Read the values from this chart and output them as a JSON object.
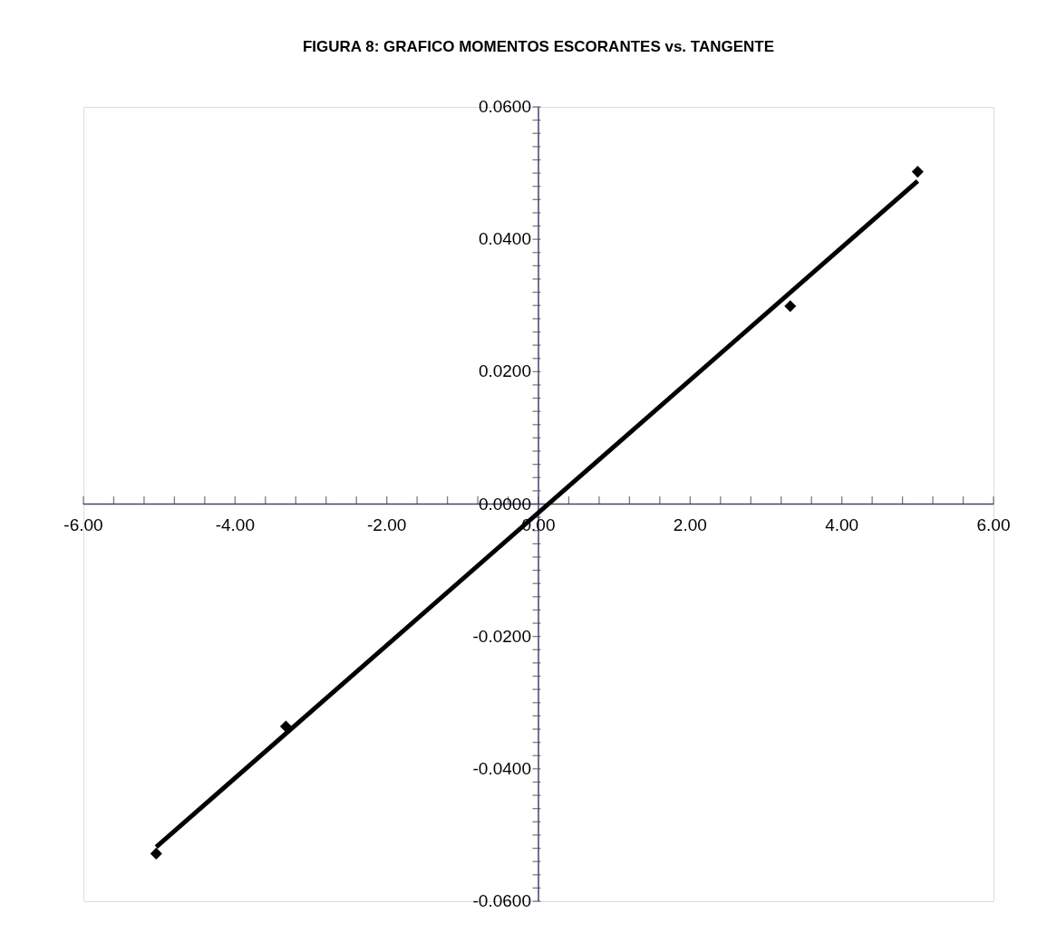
{
  "chart_data": {
    "type": "scatter",
    "title": "FIGURA 8: GRAFICO MOMENTOS ESCORANTES vs. TANGENTE",
    "series": [
      {
        "color": "#000000",
        "marker": "diamond",
        "x": [
          -5.04,
          -3.33,
          3.32,
          5.0
        ],
        "values": [
          -0.0528,
          -0.0336,
          0.0299,
          0.0502
        ]
      },
      {
        "type": "line",
        "color": "#000000",
        "line_style": "solid",
        "marker": "none",
        "x": [
          -5.04,
          5.0
        ],
        "values": [
          -0.0518,
          0.0488
        ]
      }
    ],
    "xlim": [
      -6,
      6
    ],
    "ylim": [
      -0.06,
      0.06
    ],
    "grid": false,
    "xticks": [
      {
        "value": -6,
        "label": "-6.00"
      },
      {
        "value": -5.6,
        "label": null
      },
      {
        "value": -5.2,
        "label": null
      },
      {
        "value": -4.8,
        "label": null
      },
      {
        "value": -4.4,
        "label": null
      },
      {
        "value": -4,
        "label": "-4.00"
      },
      {
        "value": -3.6,
        "label": null
      },
      {
        "value": -3.2,
        "label": null
      },
      {
        "value": -2.8,
        "label": null
      },
      {
        "value": -2.4,
        "label": null
      },
      {
        "value": -2,
        "label": "-2.00"
      },
      {
        "value": -1.6,
        "label": null
      },
      {
        "value": -1.2,
        "label": null
      },
      {
        "value": -0.8,
        "label": null
      },
      {
        "value": -0.4,
        "label": null
      },
      {
        "value": 0,
        "label": "0.00"
      },
      {
        "value": 0.4,
        "label": null
      },
      {
        "value": 0.8,
        "label": null
      },
      {
        "value": 1.2,
        "label": null
      },
      {
        "value": 1.6,
        "label": null
      },
      {
        "value": 2,
        "label": "2.00"
      },
      {
        "value": 2.4,
        "label": null
      },
      {
        "value": 2.8,
        "label": null
      },
      {
        "value": 3.2,
        "label": null
      },
      {
        "value": 3.6,
        "label": null
      },
      {
        "value": 4,
        "label": "4.00"
      },
      {
        "value": 4.4,
        "label": null
      },
      {
        "value": 4.8,
        "label": null
      },
      {
        "value": 5.2,
        "label": null
      },
      {
        "value": 5.6,
        "label": null
      },
      {
        "value": 6,
        "label": "6.00"
      }
    ],
    "yticks": [
      {
        "value": -0.06,
        "label": "-0.0600"
      },
      {
        "value": -0.058,
        "label": null
      },
      {
        "value": -0.056,
        "label": null
      },
      {
        "value": -0.054,
        "label": null
      },
      {
        "value": -0.052,
        "label": null
      },
      {
        "value": -0.05,
        "label": null
      },
      {
        "value": -0.048,
        "label": null
      },
      {
        "value": -0.046,
        "label": null
      },
      {
        "value": -0.044,
        "label": null
      },
      {
        "value": -0.042,
        "label": null
      },
      {
        "value": -0.04,
        "label": "-0.0400"
      },
      {
        "value": -0.038,
        "label": null
      },
      {
        "value": -0.036,
        "label": null
      },
      {
        "value": -0.034,
        "label": null
      },
      {
        "value": -0.032,
        "label": null
      },
      {
        "value": -0.03,
        "label": null
      },
      {
        "value": -0.028,
        "label": null
      },
      {
        "value": -0.026,
        "label": null
      },
      {
        "value": -0.024,
        "label": null
      },
      {
        "value": -0.022,
        "label": null
      },
      {
        "value": -0.02,
        "label": "-0.0200"
      },
      {
        "value": -0.018,
        "label": null
      },
      {
        "value": -0.016,
        "label": null
      },
      {
        "value": -0.014,
        "label": null
      },
      {
        "value": -0.012,
        "label": null
      },
      {
        "value": -0.01,
        "label": null
      },
      {
        "value": -0.008,
        "label": null
      },
      {
        "value": -0.006,
        "label": null
      },
      {
        "value": -0.004,
        "label": null
      },
      {
        "value": -0.002,
        "label": null
      },
      {
        "value": 0,
        "label": "0.0000"
      },
      {
        "value": 0.002,
        "label": null
      },
      {
        "value": 0.004,
        "label": null
      },
      {
        "value": 0.006,
        "label": null
      },
      {
        "value": 0.008,
        "label": null
      },
      {
        "value": 0.01,
        "label": null
      },
      {
        "value": 0.012,
        "label": null
      },
      {
        "value": 0.014,
        "label": null
      },
      {
        "value": 0.016,
        "label": null
      },
      {
        "value": 0.018,
        "label": null
      },
      {
        "value": 0.02,
        "label": "0.0200"
      },
      {
        "value": 0.022,
        "label": null
      },
      {
        "value": 0.024,
        "label": null
      },
      {
        "value": 0.026,
        "label": null
      },
      {
        "value": 0.028,
        "label": null
      },
      {
        "value": 0.03,
        "label": null
      },
      {
        "value": 0.032,
        "label": null
      },
      {
        "value": 0.034,
        "label": null
      },
      {
        "value": 0.036,
        "label": null
      },
      {
        "value": 0.038,
        "label": null
      },
      {
        "value": 0.04,
        "label": "0.0400"
      },
      {
        "value": 0.042,
        "label": null
      },
      {
        "value": 0.044,
        "label": null
      },
      {
        "value": 0.046,
        "label": null
      },
      {
        "value": 0.048,
        "label": null
      },
      {
        "value": 0.05,
        "label": null
      },
      {
        "value": 0.052,
        "label": null
      },
      {
        "value": 0.054,
        "label": null
      },
      {
        "value": 0.056,
        "label": null
      },
      {
        "value": 0.058,
        "label": null
      },
      {
        "value": 0.06,
        "label": "0.0600"
      }
    ]
  }
}
